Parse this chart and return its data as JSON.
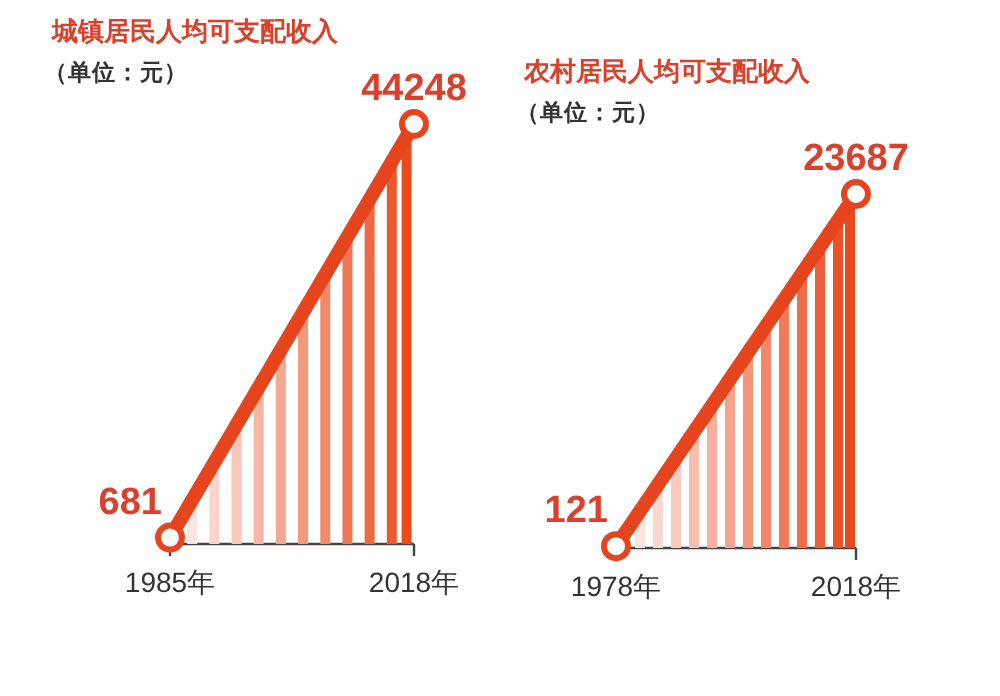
{
  "chart_data": [
    {
      "type": "line",
      "title": "城镇居民人均可支配收入",
      "subtitle": "（单位：元）",
      "x": [
        1985,
        2018
      ],
      "xlim": [
        1985,
        2018
      ],
      "xticks": [
        {
          "value": 1985,
          "label": "1985年"
        },
        {
          "value": 2018,
          "label": "2018年"
        }
      ],
      "tick_labels": "x",
      "marker": "circle",
      "series": [
        {
          "type": "bar",
          "x": [
            1988,
            1991,
            1994,
            1997,
            2000,
            2003,
            2006,
            2009,
            2012,
            2015,
            2017
          ],
          "values": [
            4600,
            8600,
            12600,
            16500,
            20500,
            24400,
            28400,
            32400,
            36300,
            40300,
            42900
          ],
          "colors": [
            "#fbe6df",
            "#f9d6cb",
            "#f8c7b8",
            "#f6b7a4",
            "#f4a891",
            "#f2987d",
            "#f1896a",
            "#ef7956",
            "#ed6a43",
            "#eb5a2f",
            "#e94b1c"
          ]
        },
        {
          "color": "#e5441c",
          "values": [
            681,
            44248
          ],
          "value_labels": [
            "681",
            "44248"
          ]
        }
      ]
    },
    {
      "type": "line",
      "title": "农村居民人均可支配收入",
      "subtitle": "（单位：元）",
      "x": [
        1978,
        2018
      ],
      "xlim": [
        1978,
        2018
      ],
      "xticks": [
        {
          "value": 1978,
          "label": "1978年"
        },
        {
          "value": 2018,
          "label": "2018年"
        }
      ],
      "tick_labels": "x",
      "marker": "circle",
      "series": [
        {
          "type": "bar",
          "x": [
            1982,
            1985,
            1988,
            1991,
            1994,
            1997,
            2000,
            2003,
            2006,
            2009,
            2012,
            2015,
            2017
          ],
          "values": [
            2500,
            4200,
            6000,
            7800,
            9500,
            11300,
            13100,
            14800,
            16600,
            18400,
            20200,
            21900,
            23100
          ],
          "colors": [
            "#fbe6df",
            "#fad9cf",
            "#f8cbbe",
            "#f7beae",
            "#f5b09d",
            "#f4a38d",
            "#f3957c",
            "#f1886c",
            "#f07a5b",
            "#ee6d4b",
            "#ed5f3a",
            "#eb522a",
            "#e94b1c"
          ]
        },
        {
          "color": "#e5441c",
          "values": [
            121,
            23687
          ],
          "value_labels": [
            "121",
            "23687"
          ]
        }
      ]
    }
  ]
}
